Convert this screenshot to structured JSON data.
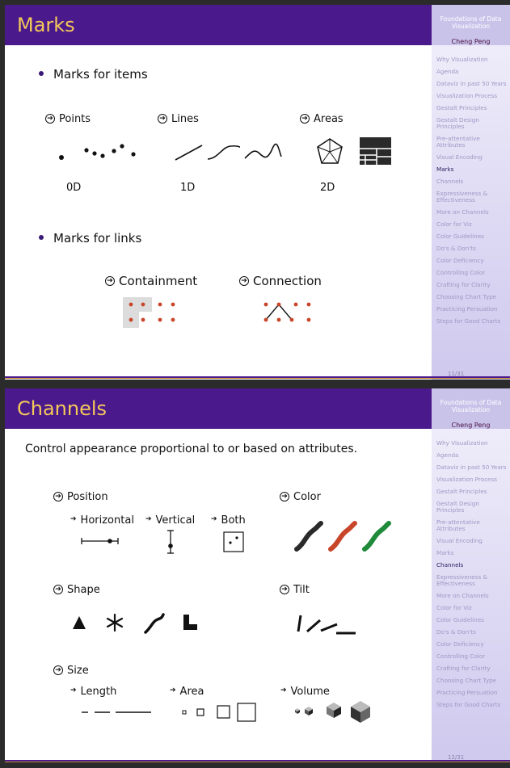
{
  "sidebar": {
    "course_title": "Foundations of Data Visualization",
    "author": "Cheng Peng",
    "items": [
      "Why Visualization",
      "Agenda",
      "Dataviz in past 50 Years",
      "Visualization Process",
      "Gestalt Principles",
      "Gestalt Design Principles",
      "Pre-attentative Attributes",
      "Visual Encoding",
      "Marks",
      "Channels",
      "Expressiveness & Effectiveness",
      "More on Channels",
      "Color for Viz",
      "Color Guidelines",
      "Do's & Don'ts",
      "Color Deficiency",
      "Controlling Color",
      "Crafting for Clarity",
      "Choosing Chart Type",
      "Practicing Persuation",
      "Steps for Good Charts"
    ]
  },
  "slide1": {
    "title": "Marks",
    "page": "11/31",
    "bullet_items": "Marks for items",
    "points_label": "Points",
    "lines_label": "Lines",
    "areas_label": "Areas",
    "dim_0d": "0D",
    "dim_1d": "1D",
    "dim_2d": "2D",
    "bullet_links": "Marks for links",
    "containment_label": "Containment",
    "connection_label": "Connection",
    "accent_color": "#c8452a"
  },
  "slide2": {
    "title": "Channels",
    "page": "12/31",
    "intro": "Control appearance proportional to or based on attributes.",
    "position_label": "Position",
    "horizontal_label": "Horizontal",
    "vertical_label": "Vertical",
    "both_label": "Both",
    "color_label": "Color",
    "shape_label": "Shape",
    "tilt_label": "Tilt",
    "size_label": "Size",
    "length_label": "Length",
    "area_label": "Area",
    "volume_label": "Volume",
    "color_swatches": [
      "#2a2a2a",
      "#c8452a",
      "#1e8a3a"
    ]
  },
  "colors": {
    "title_bar": "#4a1a8c",
    "title_text": "#f5c85a"
  }
}
